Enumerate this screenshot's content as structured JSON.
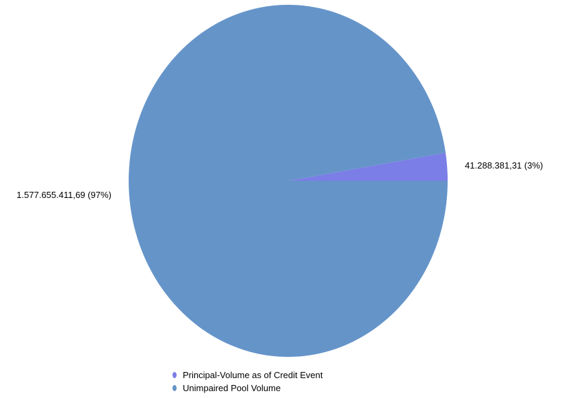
{
  "chart_data": {
    "type": "pie",
    "series": [
      {
        "name": "Principal-Volume as of Credit Event",
        "value": 41288381.31,
        "percent": 3,
        "label": "41.288.381,31 (3%)",
        "color": "#7b7ee6"
      },
      {
        "name": "Unimpaired Pool Volume",
        "value": 1577655411.69,
        "percent": 97,
        "label": "1.577.655.411,69 (97%)",
        "color": "#6594c9"
      }
    ],
    "legend_position": "bottom"
  }
}
